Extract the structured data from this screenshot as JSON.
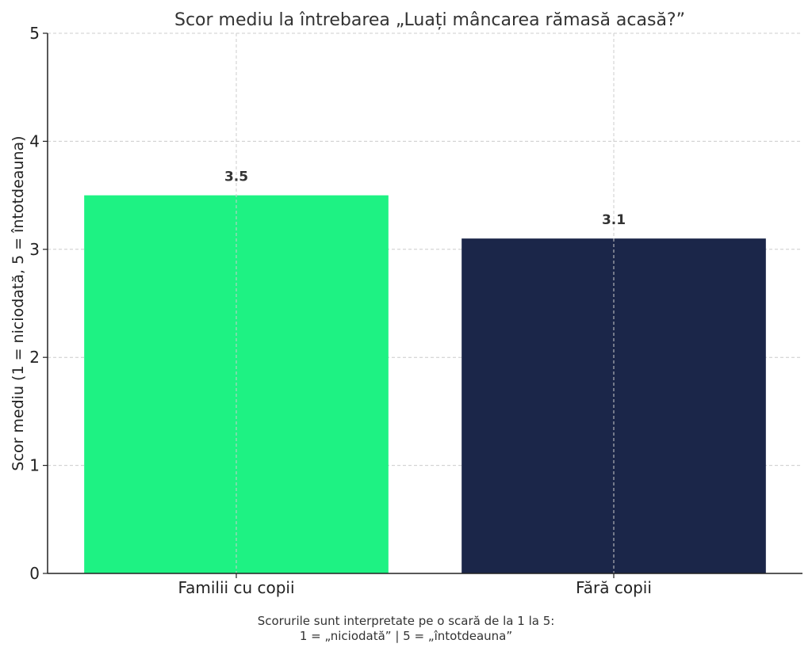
{
  "chart_data": {
    "type": "bar",
    "title": "Scor mediu la întrebarea „Luați mâncarea rămasă acasă?”",
    "categories": [
      "Familii cu copii",
      "Fără copii"
    ],
    "values": [
      3.5,
      3.1
    ],
    "data_labels": [
      "3.5",
      "3.1"
    ],
    "colors": [
      "#1ef283",
      "#1b2649"
    ],
    "xlabel": "",
    "ylabel": "Scor mediu (1 = niciodată, 5 = întotdeauna)",
    "ylim": [
      0,
      5
    ],
    "yticks": [
      0,
      1,
      2,
      3,
      4,
      5
    ],
    "grid": true,
    "legend": "none"
  },
  "footnote": {
    "line1": "Scorurile sunt interpretate pe o scară de la 1 la 5:",
    "line2": "1 = „niciodată” | 5 = „întotdeauna”"
  }
}
